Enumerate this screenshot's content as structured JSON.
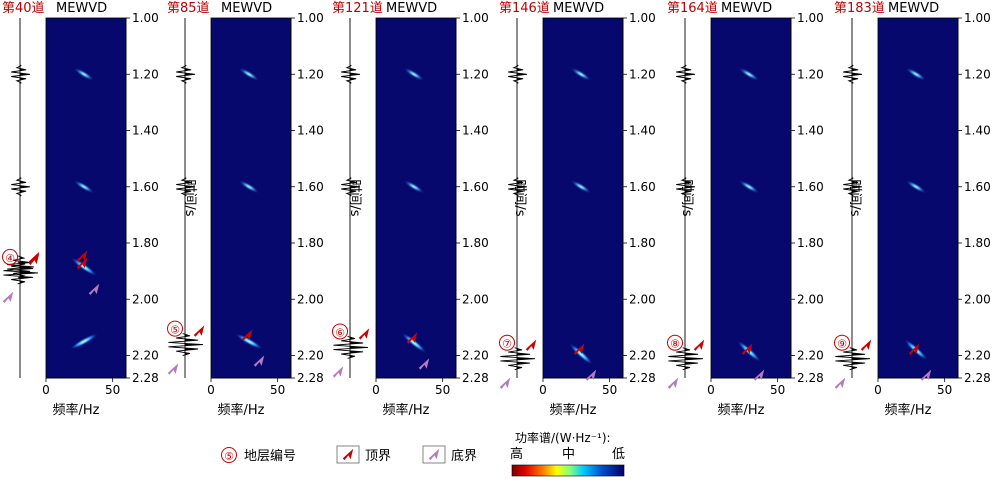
{
  "panels": [
    {
      "trace": "第40道",
      "method": "MEWVD",
      "layer": "④"
    },
    {
      "trace": "第85道",
      "method": "MEWVD",
      "layer": "⑤"
    },
    {
      "trace": "第121道",
      "method": "MEWVD",
      "layer": "⑥"
    },
    {
      "trace": "第146道",
      "method": "MEWVD",
      "layer": "⑦"
    },
    {
      "trace": "第164道",
      "method": "MEWVD",
      "layer": "⑧"
    },
    {
      "trace": "第183道",
      "method": "MEWVD",
      "layer": "⑨"
    }
  ],
  "time_axis": {
    "label": "时间/s",
    "ticks": [
      "1.00",
      "1.20",
      "1.40",
      "1.60",
      "1.80",
      "2.00",
      "2.20",
      "2.28"
    ],
    "range": [
      1.0,
      2.28
    ]
  },
  "freq_axis": {
    "label": "频率/Hz",
    "ticks": [
      "0",
      "50"
    ],
    "range": [
      0,
      60
    ]
  },
  "legend": {
    "layer_symbol": "⑤",
    "layer_label": "地层编号",
    "top_label": "顶界",
    "bottom_label": "底界",
    "colorbar_title": "功率谱/(W·Hz⁻¹):",
    "high": "高",
    "mid": "中",
    "low": "低"
  },
  "colors": {
    "title_red": "#c00000",
    "top_arrow": "#cc0000",
    "bottom_arrow": "#b57ac0",
    "background_spectrum": "#06086e"
  }
}
